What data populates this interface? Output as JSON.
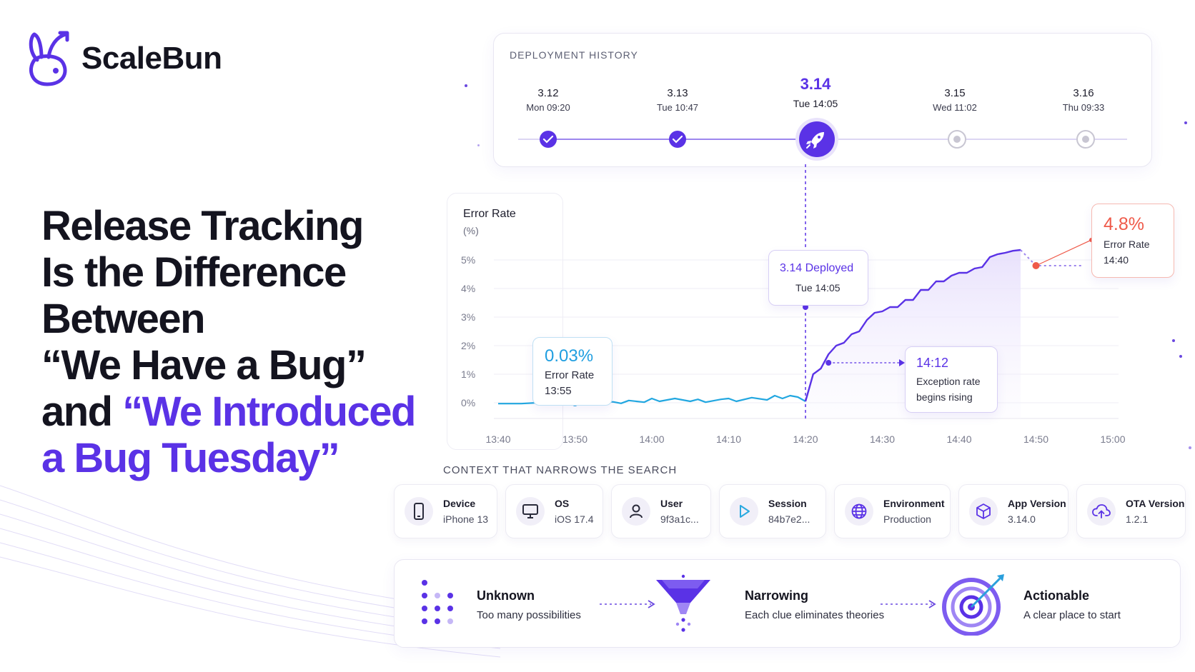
{
  "brand": {
    "name": "ScaleBun"
  },
  "headline": {
    "line1": "Release Tracking",
    "line2": "Is the Difference",
    "line3": "Between",
    "line4": "“We Have a Bug”",
    "line5_prefix": "and ",
    "line5_accent": "“We Introduced",
    "line6_accent": "a Bug Tuesday”"
  },
  "deployment_history": {
    "title": "DEPLOYMENT HISTORY",
    "releases": [
      {
        "version": "3.12",
        "date": "Mon 09:20",
        "status": "done"
      },
      {
        "version": "3.13",
        "date": "Tue 10:47",
        "status": "done"
      },
      {
        "version": "3.14",
        "date": "Tue 14:05",
        "status": "active"
      },
      {
        "version": "3.15",
        "date": "Wed 11:02",
        "status": "pending"
      },
      {
        "version": "3.16",
        "date": "Thu 09:33",
        "status": "pending"
      }
    ]
  },
  "chart_data": {
    "type": "line",
    "title": "Error Rate",
    "ylabel": "(%)",
    "y_ticks": [
      "5%",
      "4%",
      "3%",
      "2%",
      "1%",
      "0%"
    ],
    "x_ticks": [
      "13:40",
      "13:50",
      "14:00",
      "14:10",
      "14:20",
      "14:30",
      "14:40",
      "14:50",
      "15:00"
    ],
    "ylim": [
      0,
      5
    ],
    "series": [
      {
        "x": [
          "13:40",
          "13:41",
          "13:43",
          "13:45",
          "13:46",
          "13:47",
          "13:48",
          "13:50",
          "13:51",
          "13:53",
          "13:55",
          "13:56",
          "13:57",
          "13:59",
          "14:00",
          "14:01",
          "14:03",
          "14:05",
          "14:06",
          "14:07",
          "14:09",
          "14:10",
          "14:11",
          "14:13",
          "14:15",
          "14:16",
          "14:17",
          "14:18",
          "14:19",
          "14:20",
          "14:21",
          "14:22",
          "14:23",
          "14:24",
          "14:25",
          "14:26",
          "14:27",
          "14:28",
          "14:29",
          "14:30",
          "14:31",
          "14:32",
          "14:33",
          "14:34",
          "14:35",
          "14:36",
          "14:37",
          "14:38",
          "14:39",
          "14:40",
          "14:41",
          "14:42",
          "14:43",
          "14:44",
          "14:45",
          "14:46",
          "14:47",
          "14:48"
        ],
        "y": [
          -0.03,
          -0.03,
          -0.03,
          0.0,
          -0.05,
          0.02,
          -0.05,
          0.0,
          -0.03,
          0.05,
          0.03,
          -0.02,
          0.08,
          0.02,
          0.15,
          0.05,
          0.15,
          0.05,
          0.12,
          0.02,
          0.12,
          0.15,
          0.05,
          0.18,
          0.1,
          0.25,
          0.15,
          0.25,
          0.2,
          0.05,
          1.0,
          1.2,
          1.7,
          2.0,
          2.1,
          2.4,
          2.5,
          2.9,
          3.15,
          3.2,
          3.35,
          3.35,
          3.6,
          3.6,
          3.95,
          3.95,
          4.25,
          4.25,
          4.45,
          4.55,
          4.55,
          4.7,
          4.75,
          5.1,
          5.2,
          5.25,
          5.32,
          5.35
        ]
      },
      {
        "name": "projection",
        "x": [
          "14:48",
          "14:50",
          "14:56"
        ],
        "y": [
          5.35,
          4.8,
          4.8
        ]
      }
    ],
    "annotations": [
      {
        "value": "0.03%",
        "label": "Error Rate",
        "time": "13:55"
      },
      {
        "title": "3.14 Deployed",
        "time": "Tue 14:05"
      },
      {
        "time": "14:12",
        "line1": "Exception rate",
        "line2": "begins rising"
      },
      {
        "value": "4.8%",
        "label": "Error Rate",
        "time": "14:40"
      }
    ]
  },
  "context": {
    "title": "CONTEXT THAT NARROWS THE SEARCH",
    "items": [
      {
        "label": "Device",
        "value": "iPhone 13",
        "icon": "phone-icon"
      },
      {
        "label": "OS",
        "value": "iOS 17.4",
        "icon": "monitor-icon"
      },
      {
        "label": "User",
        "value": "9f3a1c...",
        "icon": "user-icon"
      },
      {
        "label": "Session",
        "value": "84b7e2...",
        "icon": "play-icon"
      },
      {
        "label": "Environment",
        "value": "Production",
        "icon": "globe-icon"
      },
      {
        "label": "App Version",
        "value": "3.14.0",
        "icon": "box-icon"
      },
      {
        "label": "OTA Version",
        "value": "1.2.1",
        "icon": "cloud-upload-icon"
      }
    ]
  },
  "flow": [
    {
      "title": "Unknown",
      "subtitle": "Too many possibilities",
      "icon": "dots-grid-icon"
    },
    {
      "title": "Narrowing",
      "subtitle": "Each clue eliminates theories",
      "icon": "funnel-icon"
    },
    {
      "title": "Actionable",
      "subtitle": "A clear place to start",
      "icon": "target-icon"
    }
  ],
  "colors": {
    "accent": "#5a32e6",
    "line": "#22a7e0",
    "alert": "#ef5a4a",
    "text": "#14141f"
  }
}
